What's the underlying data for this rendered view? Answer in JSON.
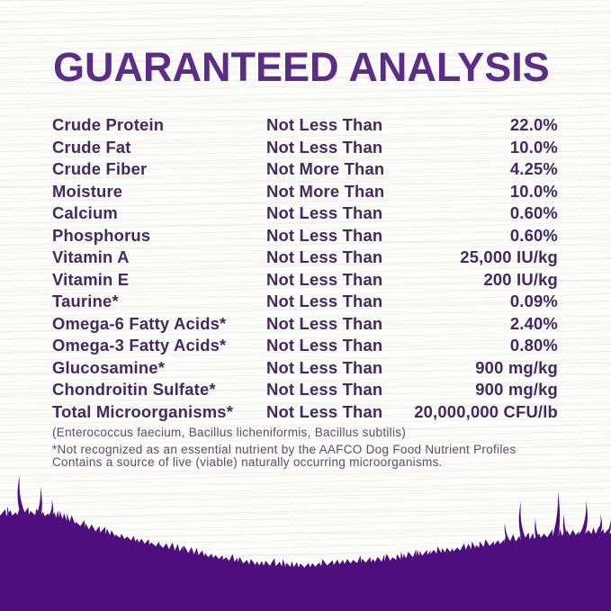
{
  "label": {
    "title": "GUARANTEED ANALYSIS",
    "table": {
      "rows": [
        {
          "nutrient": "Crude Protein",
          "qualifier": "Not Less Than",
          "value": "22.0%"
        },
        {
          "nutrient": "Crude Fat",
          "qualifier": "Not Less Than",
          "value": "10.0%"
        },
        {
          "nutrient": "Crude Fiber",
          "qualifier": "Not More Than",
          "value": "4.25%"
        },
        {
          "nutrient": "Moisture",
          "qualifier": "Not More Than",
          "value": "10.0%"
        },
        {
          "nutrient": "Calcium",
          "qualifier": "Not Less Than",
          "value": "0.60%"
        },
        {
          "nutrient": "Phosphorus",
          "qualifier": "Not Less Than",
          "value": "0.60%"
        },
        {
          "nutrient": "Vitamin A",
          "qualifier": "Not Less Than",
          "value": "25,000 IU/kg"
        },
        {
          "nutrient": "Vitamin E",
          "qualifier": "Not Less Than",
          "value": "200 IU/kg"
        },
        {
          "nutrient": "Taurine*",
          "qualifier": "Not Less Than",
          "value": "0.09%"
        },
        {
          "nutrient": "Omega-6 Fatty Acids*",
          "qualifier": "Not Less Than",
          "value": "2.40%"
        },
        {
          "nutrient": "Omega-3 Fatty Acids*",
          "qualifier": "Not Less Than",
          "value": "0.80%"
        },
        {
          "nutrient": "Glucosamine*",
          "qualifier": "Not Less Than",
          "value": "900 mg/kg"
        },
        {
          "nutrient": "Chondroitin Sulfate*",
          "qualifier": "Not Less Than",
          "value": "900 mg/kg"
        },
        {
          "nutrient": "Total Microorganisms*",
          "qualifier": "Not Less Than",
          "value": "20,000,000 CFU/lb"
        }
      ],
      "microorganisms_detail": "(Enterococcus faecium, Bacillus licheniformis, Bacillus subtilis)",
      "footnotes": [
        "*Not recognized as an essential nutrient by the AAFCO Dog Food Nutrient Profiles",
        "Contains a source of live (viable) naturally occurring microorganisms."
      ]
    }
  },
  "colors": {
    "title_text": "#5b2d87",
    "body_text": "#45295e",
    "footnote_text": "#5d4c6e",
    "grass": "#4e0e7e",
    "background": "#fcfcfa"
  }
}
